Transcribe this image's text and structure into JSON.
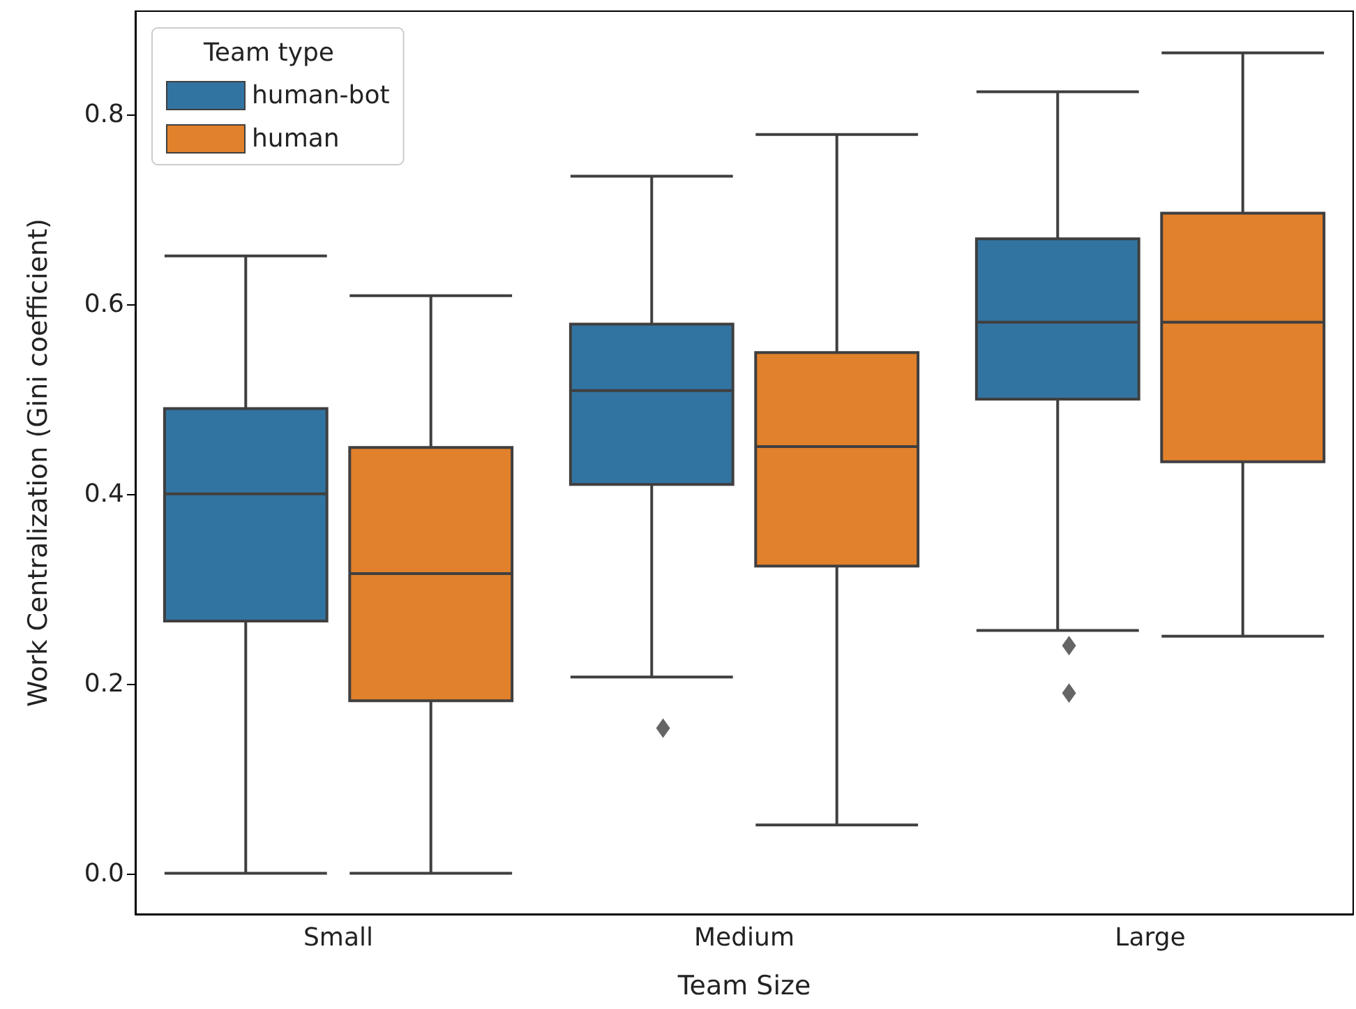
{
  "chart_data": {
    "type": "box",
    "xlabel": "Team Size",
    "ylabel": "Work Centralization (Gini coefficient)",
    "legend_title": "Team type",
    "legend": "top left",
    "grid": false,
    "categories": [
      "Small",
      "Medium",
      "Large"
    ],
    "ylim": [
      -0.043,
      0.909
    ],
    "yticks": [
      {
        "value": 0,
        "label": "0.0"
      },
      {
        "value": 0.2,
        "label": "0.2"
      },
      {
        "value": 0.4,
        "label": "0.4"
      },
      {
        "value": 0.6,
        "label": "0.6"
      },
      {
        "value": 0.8,
        "label": "0.8"
      }
    ],
    "series": [
      {
        "name": "human-bot",
        "color": "#3274a1",
        "boxes": [
          {
            "low": 0,
            "q1": 0.266,
            "median": 0.4,
            "q3": 0.49,
            "high": 0.651
          },
          {
            "low": 0.207,
            "q1": 0.41,
            "median": 0.509,
            "q3": 0.579,
            "high": 0.735,
            "outliers": [
              0.153
            ]
          },
          {
            "low": 0.256,
            "q1": 0.5,
            "median": 0.581,
            "q3": 0.669,
            "high": 0.824,
            "outliers": [
              0.24,
              0.19
            ]
          }
        ]
      },
      {
        "name": "human",
        "color": "#e1812c",
        "boxes": [
          {
            "low": 0,
            "q1": 0.182,
            "median": 0.316,
            "q3": 0.449,
            "high": 0.609
          },
          {
            "low": 0.051,
            "q1": 0.324,
            "median": 0.45,
            "q3": 0.549,
            "high": 0.779
          },
          {
            "low": 0.25,
            "q1": 0.434,
            "median": 0.581,
            "q3": 0.696,
            "high": 0.865
          }
        ]
      }
    ]
  }
}
